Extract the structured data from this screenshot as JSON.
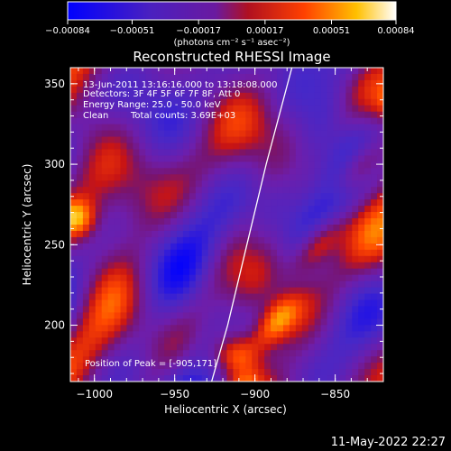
{
  "colorbar": {
    "ticks": [
      "-0.00084",
      "-0.00051",
      "-0.00017",
      "0.00017",
      "0.00051",
      "0.00084"
    ],
    "unit_label": "(photons cm⁻² s⁻¹ asec⁻²)"
  },
  "chart_data": {
    "type": "heatmap",
    "title": "Reconstructed RHESSI Image",
    "xlabel": "Heliocentric X (arcsec)",
    "ylabel": "Heliocentric Y (arcsec)",
    "xlim": [
      -1015,
      -820
    ],
    "ylim": [
      165,
      360
    ],
    "xticks": [
      -1000,
      -950,
      -900,
      -850
    ],
    "yticks": [
      200,
      250,
      300,
      350
    ],
    "xtick_labels": [
      "−1000",
      "−950",
      "−900",
      "−850"
    ],
    "ytick_labels": [
      "200",
      "250",
      "300",
      "350"
    ],
    "value_range": [
      -0.00084,
      0.00084
    ],
    "colormap": "blue-purple-red-yellow-white",
    "limb_curve": [
      [
        -927,
        165
      ],
      [
        -917,
        200
      ],
      [
        -905,
        250
      ],
      [
        -893,
        300
      ],
      [
        -877,
        360
      ]
    ],
    "annotations": {
      "time_range": "13-Jun-2011 13:16:16.000 to 13:18:08.000",
      "detectors": "Detectors: 3F 4F 5F 6F 7F 8F, Att 0",
      "energy_range": "Energy Range: 25.0 - 50.0 keV",
      "method": "Clean",
      "total_counts": "Total counts: 3.69E+03",
      "peak": "Position of Peak = [-905,171]"
    }
  },
  "footer": {
    "timestamp": "11-May-2022 22:27"
  }
}
